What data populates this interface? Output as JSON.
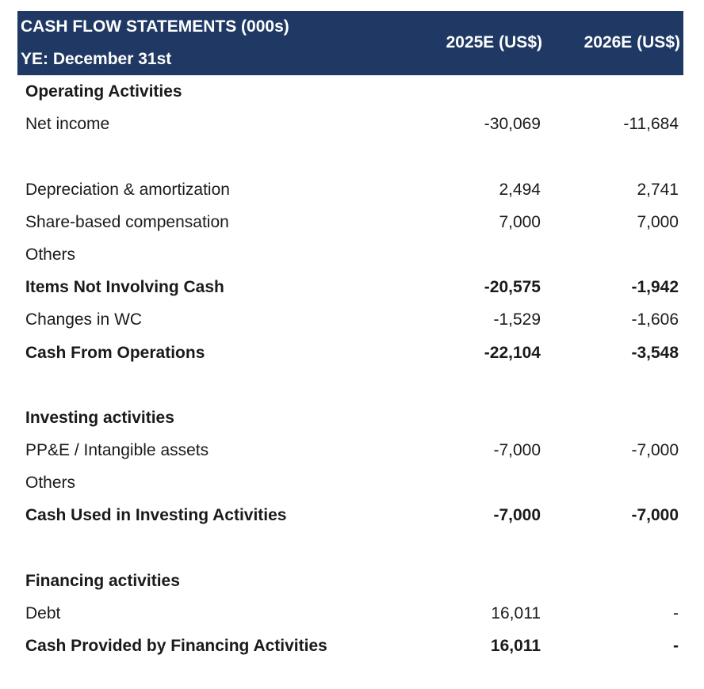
{
  "header": {
    "title_line1": "CASH FLOW STATEMENTS (000s)",
    "title_line2": "YE: December 31st",
    "col1": "2025E (US$)",
    "col2": "2026E (US$)"
  },
  "rows": [
    {
      "label": "Operating Activities",
      "v1": "",
      "v2": "",
      "bold": true
    },
    {
      "label": "Net income",
      "v1": "-30,069",
      "v2": "-11,684",
      "bold": false
    },
    {
      "label": "",
      "v1": "",
      "v2": "",
      "bold": false
    },
    {
      "label": "Depreciation & amortization",
      "v1": "2,494",
      "v2": "2,741",
      "bold": false
    },
    {
      "label": "Share-based compensation",
      "v1": "7,000",
      "v2": "7,000",
      "bold": false
    },
    {
      "label": "Others",
      "v1": "",
      "v2": "",
      "bold": false
    },
    {
      "label": "Items Not Involving Cash",
      "v1": "-20,575",
      "v2": "-1,942",
      "bold": true
    },
    {
      "label": "Changes in WC",
      "v1": "-1,529",
      "v2": "-1,606",
      "bold": false
    },
    {
      "label": "Cash From Operations",
      "v1": "-22,104",
      "v2": "-3,548",
      "bold": true
    },
    {
      "label": "",
      "v1": "",
      "v2": "",
      "bold": false
    },
    {
      "label": "Investing activities",
      "v1": "",
      "v2": "",
      "bold": true
    },
    {
      "label": "PP&E / Intangible assets",
      "v1": "-7,000",
      "v2": "-7,000",
      "bold": false
    },
    {
      "label": "Others",
      "v1": "",
      "v2": "",
      "bold": false
    },
    {
      "label": "Cash Used in Investing Activities",
      "v1": "-7,000",
      "v2": "-7,000",
      "bold": true
    },
    {
      "label": "",
      "v1": "",
      "v2": "",
      "bold": false
    },
    {
      "label": "Financing activities",
      "v1": "",
      "v2": "",
      "bold": true
    },
    {
      "label": "Debt",
      "v1": "16,011",
      "v2": "-",
      "bold": false
    },
    {
      "label": "Cash Provided by Financing Activities",
      "v1": "16,011",
      "v2": "-",
      "bold": true
    }
  ],
  "colors": {
    "header_bg": "#1f3864",
    "header_text": "#ffffff",
    "body_text": "#1a1a1a"
  }
}
